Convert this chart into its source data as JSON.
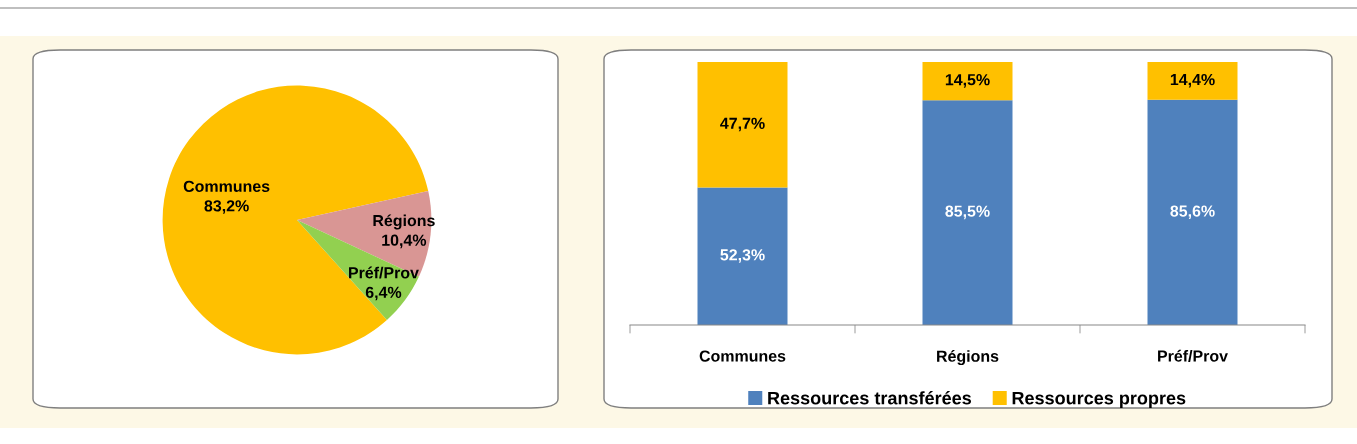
{
  "chart_data": [
    {
      "type": "pie",
      "categories": [
        "Communes",
        "Régions",
        "Préf/Prov"
      ],
      "values": [
        83.2,
        10.4,
        6.4
      ],
      "value_labels": [
        "83,2%",
        "10,4%",
        "6,4%"
      ],
      "colors": [
        "#ffc000",
        "#d99694",
        "#92d050"
      ],
      "legend": false
    },
    {
      "type": "bar",
      "stacked": true,
      "categories": [
        "Communes",
        "Régions",
        "Préf/Prov"
      ],
      "legend": "bottom",
      "series": [
        {
          "name": "Ressources transférées",
          "color": "#4f81bd",
          "values": [
            52.3,
            85.5,
            85.6
          ],
          "value_labels": [
            "52,3%",
            "85,5%",
            "85,6%"
          ]
        },
        {
          "name": "Ressources propres",
          "color": "#ffc000",
          "values": [
            47.7,
            14.5,
            14.4
          ],
          "value_labels": [
            "47,7%",
            "14,5%",
            "14,4%"
          ]
        }
      ]
    }
  ]
}
